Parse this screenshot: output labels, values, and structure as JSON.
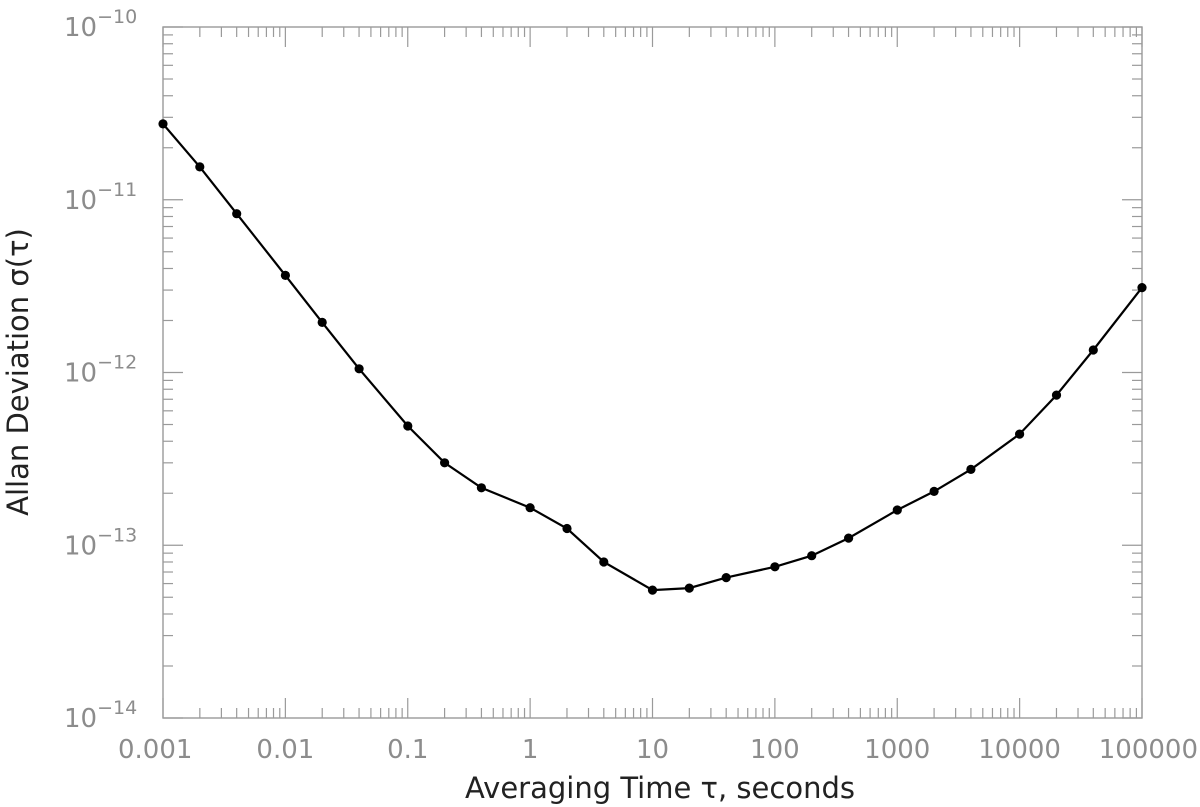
{
  "chart_data": {
    "type": "line",
    "xscale": "log",
    "yscale": "log",
    "xlim": [
      0.001,
      100000
    ],
    "ylim": [
      1e-14,
      1e-10
    ],
    "grid": false,
    "xlabel": "Averaging Time τ, seconds",
    "ylabel": "Allan Deviation σ(τ)",
    "xticks": [
      {
        "value": 0.001,
        "label": "0.001"
      },
      {
        "value": 0.01,
        "label": "0.01"
      },
      {
        "value": 0.1,
        "label": "0.1"
      },
      {
        "value": 1,
        "label": "1"
      },
      {
        "value": 10,
        "label": "10"
      },
      {
        "value": 100,
        "label": "100"
      },
      {
        "value": 1000,
        "label": "1000"
      },
      {
        "value": 10000,
        "label": "10000"
      },
      {
        "value": 100000,
        "label": "100000"
      }
    ],
    "yticks": [
      {
        "value": 1e-10,
        "mantissa": "10",
        "exponent": "−10"
      },
      {
        "value": 1e-11,
        "mantissa": "10",
        "exponent": "−11"
      },
      {
        "value": 1e-12,
        "mantissa": "10",
        "exponent": "−12"
      },
      {
        "value": 1e-13,
        "mantissa": "10",
        "exponent": "−13"
      },
      {
        "value": 1e-14,
        "mantissa": "10",
        "exponent": "−14"
      }
    ],
    "series": [
      {
        "marker": "circle",
        "color": "#000000",
        "x": [
          0.001,
          0.002,
          0.004,
          0.01,
          0.02,
          0.04,
          0.1,
          0.2,
          0.4,
          1,
          2,
          4,
          10,
          20,
          40,
          100,
          200,
          400,
          1000,
          2000,
          4000,
          10000,
          20000,
          40000,
          100000
        ],
        "y": [
          2.75e-11,
          1.55e-11,
          8.3e-12,
          3.65e-12,
          1.95e-12,
          1.05e-12,
          4.9e-13,
          3e-13,
          2.15e-13,
          1.65e-13,
          1.25e-13,
          8e-14,
          5.5e-14,
          5.65e-14,
          6.5e-14,
          7.5e-14,
          8.7e-14,
          1.1e-13,
          1.6e-13,
          2.05e-13,
          2.75e-13,
          4.4e-13,
          7.4e-13,
          1.35e-12,
          3.1e-12
        ]
      }
    ]
  }
}
